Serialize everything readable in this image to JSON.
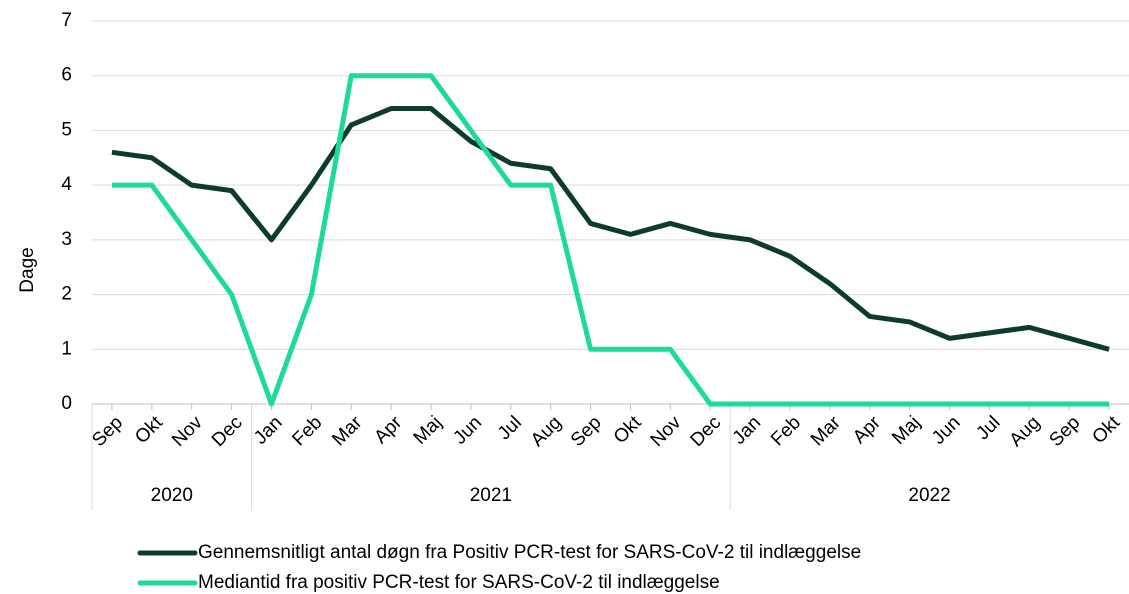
{
  "chart_data": {
    "type": "line",
    "y_label": "Dage",
    "groups": [
      {
        "label": "2020",
        "categories": [
          "Sep",
          "Okt",
          "Nov",
          "Dec"
        ]
      },
      {
        "label": "2021",
        "categories": [
          "Jan",
          "Feb",
          "Mar",
          "Apr",
          "Maj",
          "Jun",
          "Jul",
          "Aug",
          "Sep",
          "Okt",
          "Nov",
          "Dec"
        ]
      },
      {
        "label": "2022",
        "categories": [
          "Jan",
          "Feb",
          "Mar",
          "Apr",
          "Maj",
          "Jun",
          "Jul",
          "Aug",
          "Sep",
          "Okt"
        ]
      }
    ],
    "series": [
      {
        "name": "Gennemsnitligt antal døgn fra Positiv PCR-test for SARS-CoV-2 til indlæggelse",
        "color": "#0d3b30",
        "values": [
          4.6,
          4.5,
          4.0,
          3.9,
          3.0,
          4.0,
          5.1,
          5.4,
          5.4,
          4.8,
          4.4,
          4.3,
          3.3,
          3.1,
          3.3,
          3.1,
          3.0,
          2.7,
          2.2,
          1.6,
          1.5,
          1.2,
          1.3,
          1.4,
          1.2,
          1.0
        ]
      },
      {
        "name": "Mediantid fra positiv PCR-test for SARS-CoV-2 til indlæggelse",
        "color": "#1ed99c",
        "values": [
          4,
          4,
          3,
          2,
          0,
          2,
          6,
          6,
          6,
          5,
          4,
          4,
          1,
          1,
          1,
          0,
          0,
          0,
          0,
          0,
          0,
          0,
          0,
          0,
          0,
          0
        ]
      }
    ],
    "ylim": [
      0,
      7
    ],
    "yticks": [
      0,
      1,
      2,
      3,
      4,
      5,
      6,
      7
    ],
    "grid": true
  }
}
